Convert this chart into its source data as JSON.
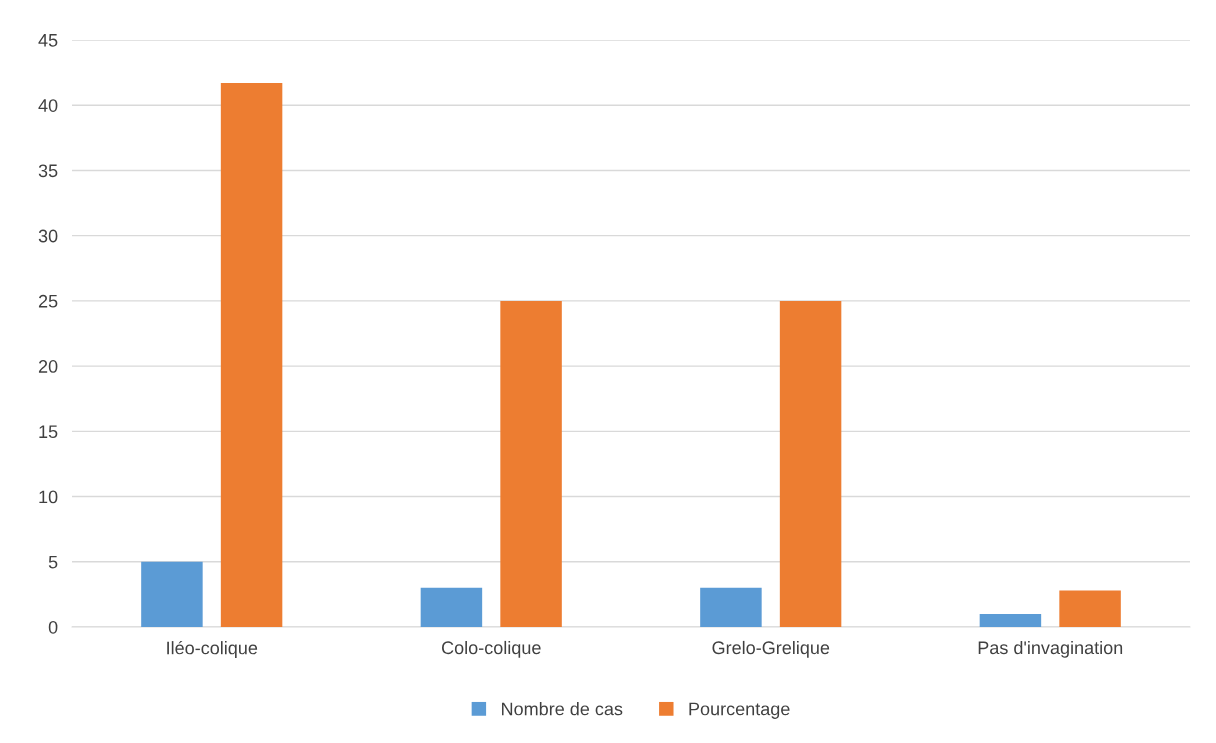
{
  "chart_data": {
    "type": "bar",
    "categories": [
      "Iléo-colique",
      "Colo-colique",
      "Grelo-Grelique",
      "Pas d'invagination"
    ],
    "series": [
      {
        "name": "Nombre de cas",
        "color": "#5b9bd5",
        "values": [
          5,
          3,
          3,
          1
        ]
      },
      {
        "name": "Pourcentage",
        "color": "#ed7d31",
        "values": [
          41.7,
          25,
          25,
          2.8
        ]
      }
    ],
    "ylim": [
      0,
      45
    ],
    "yticks": [
      0,
      5,
      10,
      15,
      20,
      25,
      30,
      35,
      40,
      45
    ],
    "grid": "y",
    "legend": "bottom"
  }
}
